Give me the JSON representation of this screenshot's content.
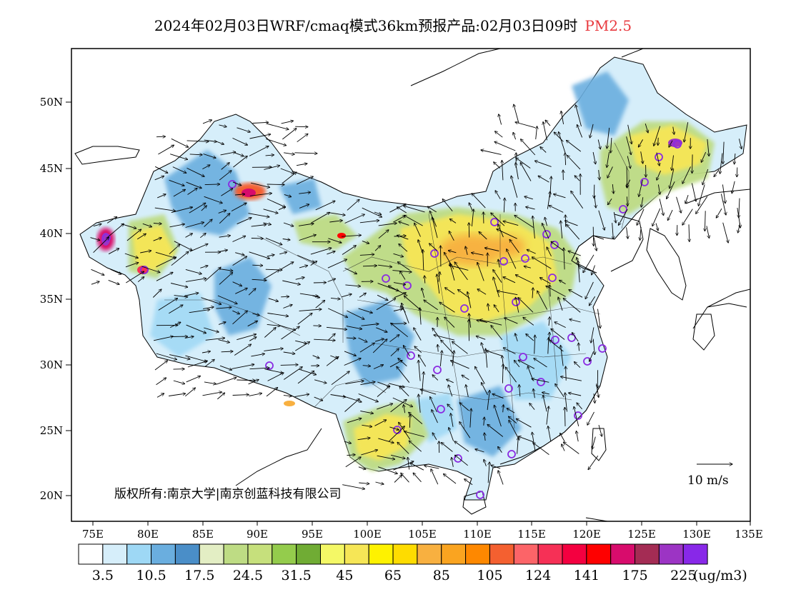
{
  "title": {
    "main": "2024年02月03日WRF/cmaq模式36km预报产品:02月03日09时",
    "variable": "PM2.5"
  },
  "map": {
    "lat_ticks": [
      "50N",
      "45N",
      "40N",
      "35N",
      "30N",
      "25N",
      "20N"
    ],
    "lon_ticks": [
      "75E",
      "80E",
      "85E",
      "90E",
      "95E",
      "100E",
      "105E",
      "110E",
      "115E",
      "120E",
      "125E",
      "130E",
      "135E"
    ],
    "copyright": "版权所有:南京大学|南京创蓝科技有限公司",
    "wind_scale_label": "10 m/s"
  },
  "colorbar": {
    "colors": [
      "#ffffff",
      "#d6eefa",
      "#9ed8f5",
      "#6aaedf",
      "#4a8ec8",
      "#e3eec4",
      "#bedc84",
      "#c6e07c",
      "#94cc4c",
      "#70ac34",
      "#f4f866",
      "#f6e656",
      "#fef200",
      "#fedc00",
      "#f8b040",
      "#faa420",
      "#fe8800",
      "#f46030",
      "#fc6468",
      "#f63056",
      "#f40040",
      "#fe0000",
      "#d80c6c",
      "#a42c54",
      "#9c34c4",
      "#8828e8"
    ],
    "labels": [
      "3.5",
      "10.5",
      "17.5",
      "24.5",
      "31.5",
      "45",
      "65",
      "85",
      "105",
      "124",
      "141",
      "175",
      "225"
    ],
    "unit": "(ug/m3)"
  }
}
